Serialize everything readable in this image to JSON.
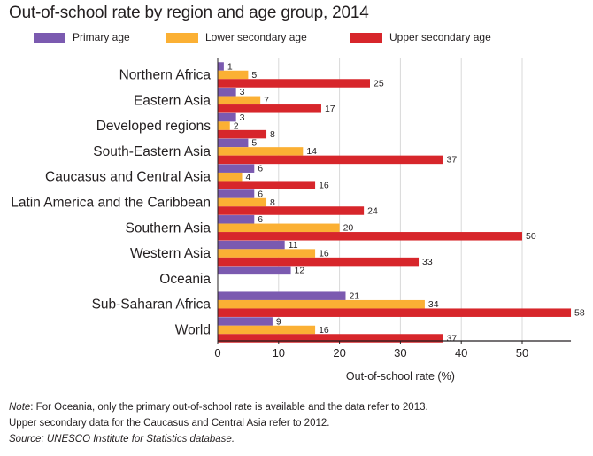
{
  "title": "Out-of-school rate by region and age group, 2014",
  "notes": {
    "note_label": "Note",
    "note_text": ": For Oceania, only the primary out-of-school rate is available and the data refer to 2013.",
    "note_line2": "Upper secondary data for the Caucasus and Central Asia refer to 2012.",
    "source_label": "Source",
    "source_text": ": UNESCO Institute for Statistics database."
  },
  "colors": {
    "primary": "#7b5ab0",
    "lower_secondary": "#fbb034",
    "upper_secondary": "#d7262b",
    "grid": "#d9d9d9",
    "axis": "#231f20"
  },
  "chart_data": {
    "type": "bar",
    "orientation": "horizontal",
    "title": "Out-of-school rate by region and age group, 2014",
    "xlabel": "Out-of-school rate (%)",
    "ylabel": "",
    "xlim": [
      0,
      58
    ],
    "xticks": [
      0,
      10,
      20,
      30,
      40,
      50
    ],
    "grid": true,
    "legend_position": "top",
    "categories": [
      "Northern Africa",
      "Eastern Asia",
      "Developed regions",
      "South-Eastern Asia",
      "Caucasus and Central Asia",
      "Latin America and the Caribbean",
      "Southern Asia",
      "Western Asia",
      "Oceania",
      "Sub-Saharan Africa",
      "World"
    ],
    "series": [
      {
        "name": "Primary age",
        "color_key": "primary",
        "values": [
          1,
          3,
          3,
          5,
          6,
          6,
          6,
          11,
          12,
          21,
          9
        ]
      },
      {
        "name": "Lower secondary age",
        "color_key": "lower_secondary",
        "values": [
          5,
          7,
          2,
          14,
          4,
          8,
          20,
          16,
          null,
          34,
          16
        ]
      },
      {
        "name": "Upper secondary age",
        "color_key": "upper_secondary",
        "values": [
          25,
          17,
          8,
          37,
          16,
          24,
          50,
          33,
          null,
          58,
          37
        ]
      }
    ]
  }
}
